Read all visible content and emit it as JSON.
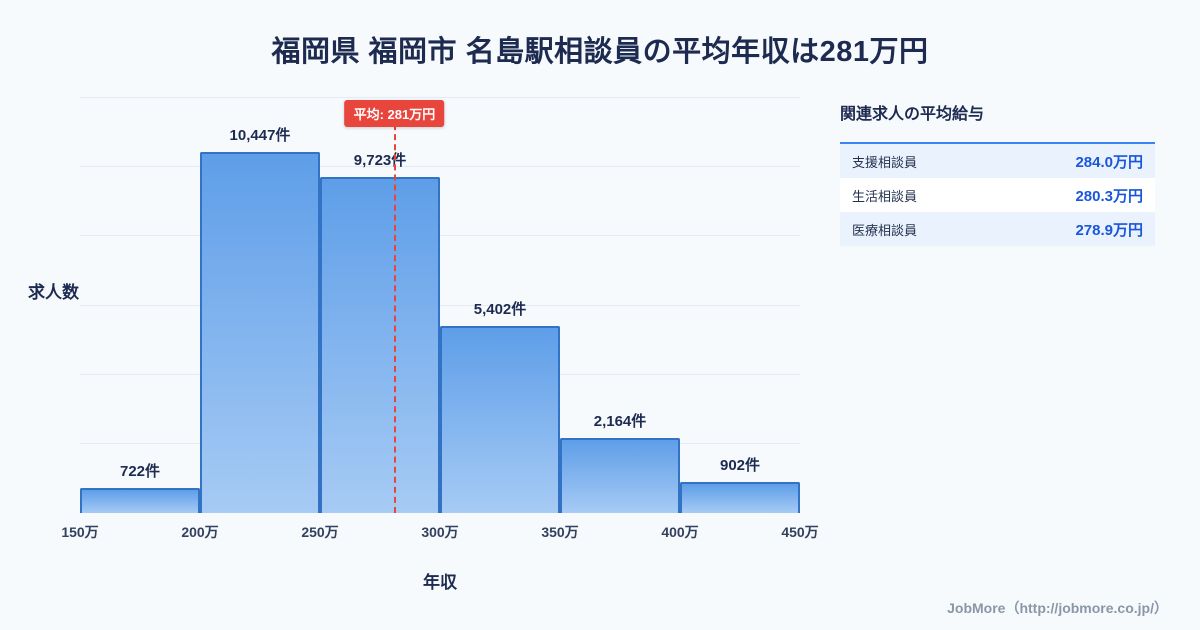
{
  "title": "福岡県 福岡市 名島駅相談員の平均年収は281万円",
  "chart_data": {
    "type": "bar",
    "title": "福岡県 福岡市 名島駅相談員の平均年収は281万円",
    "xlabel": "年収",
    "ylabel": "求人数",
    "x_ticks": [
      "150万",
      "200万",
      "250万",
      "300万",
      "350万",
      "400万",
      "450万"
    ],
    "x_range": [
      150,
      450
    ],
    "bin_width": 50,
    "categories": [
      "150万-200万",
      "200万-250万",
      "250万-300万",
      "300万-350万",
      "350万-400万",
      "400万-450万"
    ],
    "values": [
      722,
      10447,
      9723,
      5402,
      2164,
      902
    ],
    "bar_labels": [
      "722件",
      "10,447件",
      "9,723件",
      "5,402件",
      "2,164件",
      "902件"
    ],
    "ylim": [
      0,
      12000
    ],
    "grid_step": 2000,
    "grid": "horizontal",
    "legend": "none",
    "average_line": {
      "value": 281,
      "label": "平均: 281万円"
    }
  },
  "side_panel": {
    "heading": "関連求人の平均給与",
    "rows": [
      {
        "label": "支援相談員",
        "value": "284.0万円"
      },
      {
        "label": "生活相談員",
        "value": "280.3万円"
      },
      {
        "label": "医療相談員",
        "value": "278.9万円"
      }
    ]
  },
  "footer": {
    "credit": "JobMore（http://jobmore.co.jp/）"
  },
  "colors": {
    "background": "#f7fafd",
    "bar_fill_top": "#5e9ee8",
    "bar_fill_bottom": "#a6cbf4",
    "bar_border": "#3273c6",
    "average_line": "#e8453c",
    "value_text": "#1a56db",
    "heading_text": "#1e2b50",
    "credit_text": "#8b97a6"
  }
}
